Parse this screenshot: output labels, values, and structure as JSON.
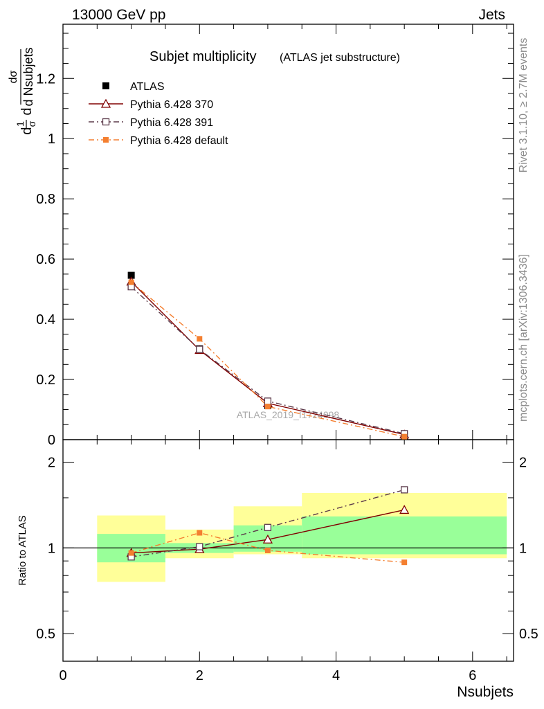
{
  "header": {
    "left": "13000 GeV pp",
    "right": "Jets"
  },
  "side_text": {
    "top": "Rivet 3.1.10, ≥ 2.7M events",
    "bottom": "mcplots.cern.ch [arXiv:1306.3436]"
  },
  "chart_data": {
    "type": "line",
    "title": "Subjet multiplicity",
    "subtitle": "(ATLAS jet substructure)",
    "watermark": "ATLAS_2019_I1724098",
    "xlabel": "Nsubjets",
    "ylabel": "1/σ dσ/d Nsubjets",
    "xlim": [
      0,
      6.6
    ],
    "x_ticks": [
      "0",
      "2",
      "4",
      "6"
    ],
    "main_panel": {
      "ylim": [
        0,
        1.38
      ],
      "y_ticks": [
        "0",
        "0.2",
        "0.4",
        "0.6",
        "0.8",
        "1",
        "1.2"
      ],
      "series": [
        {
          "name": "ATLAS",
          "style": "data",
          "color": "#000000",
          "x": [
            1,
            2,
            3,
            5
          ],
          "y": [
            0.546,
            0.302,
            0.113,
            0.012
          ]
        },
        {
          "name": "Pythia 6.428 370",
          "style": "triangle-solid",
          "color": "#800000",
          "x": [
            1,
            2,
            3,
            5
          ],
          "y": [
            0.525,
            0.298,
            0.121,
            0.017
          ]
        },
        {
          "name": "Pythia 6.428 391",
          "style": "square-dashdot",
          "color": "#5c3a4a",
          "x": [
            1,
            2,
            3,
            5
          ],
          "y": [
            0.508,
            0.3,
            0.128,
            0.02
          ]
        },
        {
          "name": "Pythia 6.428 default",
          "style": "filled-square-dashdot",
          "color": "#f47f30",
          "x": [
            1,
            2,
            3,
            5
          ],
          "y": [
            0.523,
            0.335,
            0.11,
            0.01
          ]
        }
      ]
    },
    "ratio_panel": {
      "ylabel": "Ratio to ATLAS",
      "scale": "log",
      "ylim": [
        0.4,
        2.4
      ],
      "y_ticks": [
        "0.5",
        "1",
        "2"
      ],
      "reference": 1,
      "bands": [
        {
          "x0": 0.5,
          "x1": 1.5,
          "inner": [
            0.89,
            1.12
          ],
          "outer": [
            0.76,
            1.3
          ]
        },
        {
          "x0": 1.5,
          "x1": 2.5,
          "inner": [
            0.96,
            1.04
          ],
          "outer": [
            0.92,
            1.16
          ]
        },
        {
          "x0": 2.5,
          "x1": 3.5,
          "inner": [
            0.97,
            1.2
          ],
          "outer": [
            0.95,
            1.4
          ]
        },
        {
          "x0": 3.5,
          "x1": 6.5,
          "inner": [
            0.95,
            1.29
          ],
          "outer": [
            0.92,
            1.56
          ]
        }
      ],
      "series": [
        {
          "name": "Pythia 6.428 370",
          "x": [
            1,
            2,
            3,
            5
          ],
          "y": [
            0.96,
            0.99,
            1.07,
            1.36
          ]
        },
        {
          "name": "Pythia 6.428 391",
          "x": [
            1,
            2,
            3,
            5
          ],
          "y": [
            0.93,
            1.01,
            1.18,
            1.6
          ]
        },
        {
          "name": "Pythia 6.428 default",
          "x": [
            1,
            2,
            3,
            5
          ],
          "y": [
            0.96,
            1.13,
            0.98,
            0.89
          ]
        }
      ]
    },
    "colors": {
      "band_inner": "#99ff99",
      "band_outer": "#ffff99"
    }
  }
}
